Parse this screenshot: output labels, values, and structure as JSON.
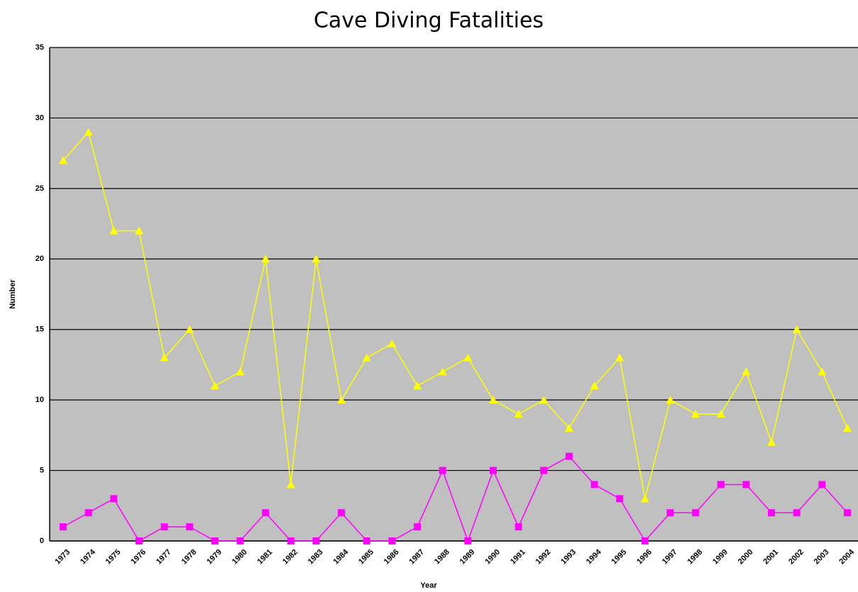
{
  "chart_data": {
    "type": "line",
    "title": "Cave Diving Fatalities",
    "x_label": "Year",
    "y_label": "Number",
    "categories": [
      "1973",
      "1974",
      "1975",
      "1976",
      "1977",
      "1978",
      "1979",
      "1980",
      "1981",
      "1982",
      "1983",
      "1984",
      "1985",
      "1986",
      "1987",
      "1988",
      "1989",
      "1990",
      "1991",
      "1992",
      "1993",
      "1994",
      "1995",
      "1996",
      "1997",
      "1998",
      "1999",
      "2000",
      "2001",
      "2002",
      "2003",
      "2004"
    ],
    "series": [
      {
        "color": "#ffff00",
        "marker": "triangle",
        "values": [
          27,
          29,
          22,
          22,
          13,
          15,
          11,
          12,
          20,
          4,
          20,
          10,
          13,
          14,
          11,
          12,
          13,
          10,
          9,
          10,
          8,
          11,
          13,
          3,
          10,
          9,
          9,
          12,
          7,
          15,
          12,
          8
        ]
      },
      {
        "color": "#ff00ff",
        "marker": "square",
        "values": [
          1,
          2,
          3,
          0,
          1,
          1,
          0,
          0,
          2,
          0,
          0,
          2,
          0,
          0,
          1,
          5,
          0,
          5,
          1,
          5,
          6,
          4,
          3,
          0,
          2,
          2,
          4,
          4,
          2,
          2,
          4,
          2
        ]
      }
    ],
    "ylim": [
      0,
      35
    ],
    "yticks": [
      0,
      5,
      10,
      15,
      20,
      25,
      30,
      35
    ],
    "grid": true
  }
}
